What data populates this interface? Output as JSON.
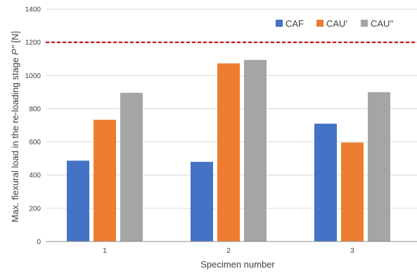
{
  "chart_data": {
    "type": "bar",
    "categories": [
      "1",
      "2",
      "3"
    ],
    "series": [
      {
        "name": "CAF",
        "values": [
          487,
          480,
          710
        ],
        "color": "#4472C4"
      },
      {
        "name": "CAU'",
        "values": [
          733,
          1073,
          596
        ],
        "color": "#ED7D31"
      },
      {
        "name": "CAU''",
        "values": [
          896,
          1094,
          900
        ],
        "color": "#A5A5A5"
      }
    ],
    "xlabel": "Specimen number",
    "ylabel": "Max. flexural load in the re-loading stage ",
    "ylabel_italic": "P''",
    "ylabel_unit": " [N]",
    "ylim": [
      0,
      1400
    ],
    "yticks": [
      0,
      200,
      400,
      600,
      800,
      1000,
      1200,
      1400
    ],
    "reference_line": {
      "value": 1200,
      "color": "#C00000",
      "style": "dashed"
    },
    "grid": "horizontal",
    "legend_position": "top-right"
  }
}
